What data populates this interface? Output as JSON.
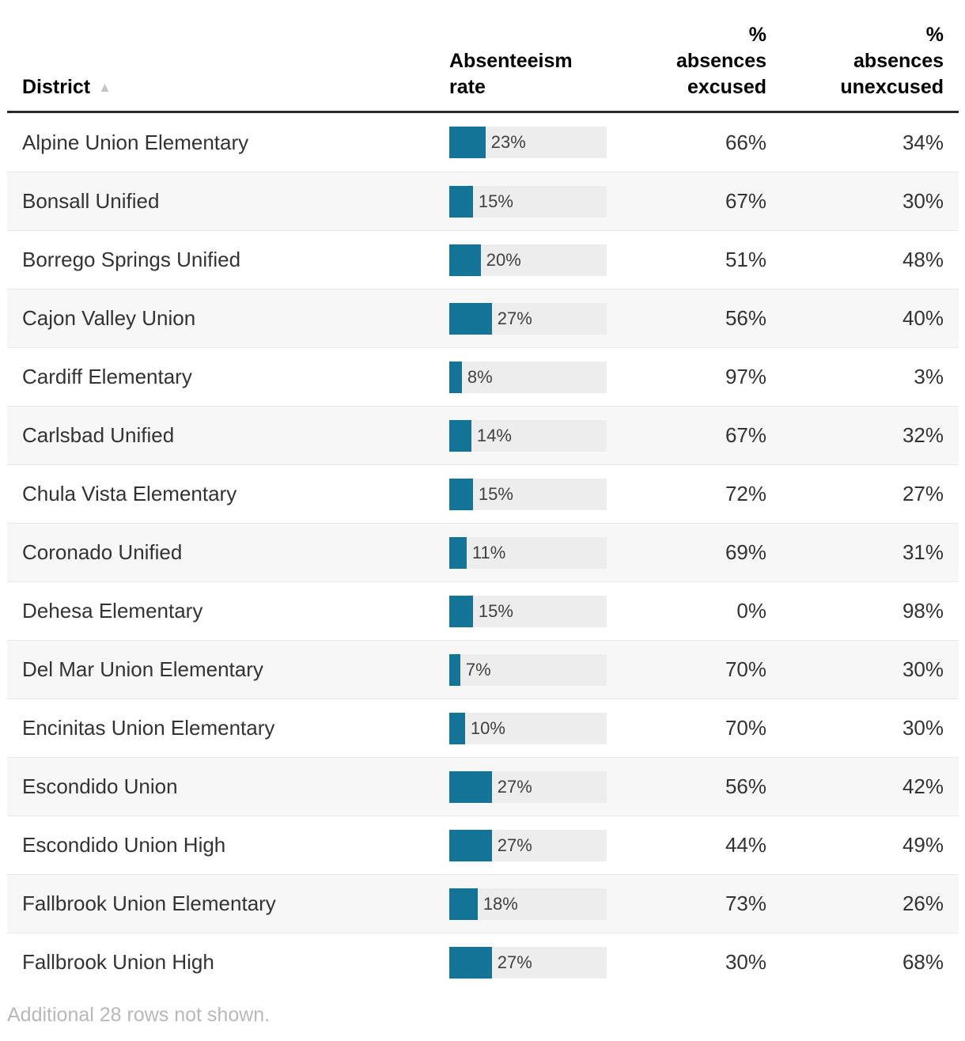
{
  "header": {
    "district_label": "District",
    "sort_icon": "▲",
    "rate_label": "Absenteeism\nrate",
    "excused_label": "%\nabsences\nexcused",
    "unexcused_label": "%\nabsences\nunexcused"
  },
  "rows": [
    {
      "district": "Alpine Union Elementary",
      "rate": 23,
      "rate_label": "23%",
      "excused": "66%",
      "unexcused": "34%"
    },
    {
      "district": "Bonsall Unified",
      "rate": 15,
      "rate_label": "15%",
      "excused": "67%",
      "unexcused": "30%"
    },
    {
      "district": "Borrego Springs Unified",
      "rate": 20,
      "rate_label": "20%",
      "excused": "51%",
      "unexcused": "48%"
    },
    {
      "district": "Cajon Valley Union",
      "rate": 27,
      "rate_label": "27%",
      "excused": "56%",
      "unexcused": "40%"
    },
    {
      "district": "Cardiff Elementary",
      "rate": 8,
      "rate_label": "8%",
      "excused": "97%",
      "unexcused": "3%"
    },
    {
      "district": "Carlsbad Unified",
      "rate": 14,
      "rate_label": "14%",
      "excused": "67%",
      "unexcused": "32%"
    },
    {
      "district": "Chula Vista Elementary",
      "rate": 15,
      "rate_label": "15%",
      "excused": "72%",
      "unexcused": "27%"
    },
    {
      "district": "Coronado Unified",
      "rate": 11,
      "rate_label": "11%",
      "excused": "69%",
      "unexcused": "31%"
    },
    {
      "district": "Dehesa Elementary",
      "rate": 15,
      "rate_label": "15%",
      "excused": "0%",
      "unexcused": "98%"
    },
    {
      "district": "Del Mar Union Elementary",
      "rate": 7,
      "rate_label": "7%",
      "excused": "70%",
      "unexcused": "30%"
    },
    {
      "district": "Encinitas Union Elementary",
      "rate": 10,
      "rate_label": "10%",
      "excused": "70%",
      "unexcused": "30%"
    },
    {
      "district": "Escondido Union",
      "rate": 27,
      "rate_label": "27%",
      "excused": "56%",
      "unexcused": "42%"
    },
    {
      "district": "Escondido Union High",
      "rate": 27,
      "rate_label": "27%",
      "excused": "44%",
      "unexcused": "49%"
    },
    {
      "district": "Fallbrook Union Elementary",
      "rate": 18,
      "rate_label": "18%",
      "excused": "73%",
      "unexcused": "26%"
    },
    {
      "district": "Fallbrook Union High",
      "rate": 27,
      "rate_label": "27%",
      "excused": "30%",
      "unexcused": "68%"
    }
  ],
  "footer": {
    "note": "Additional 28 rows not shown."
  },
  "colors": {
    "bar": "#137497",
    "bar_track": "#ededed",
    "row_stripe": "#f7f7f7",
    "header_rule": "#2b2b2b",
    "footnote": "#b8b8b8"
  },
  "chart_data": {
    "type": "table",
    "title": "",
    "columns": [
      "District",
      "Absenteeism rate",
      "% absences excused",
      "% absences unexcused"
    ],
    "sort": {
      "column": "District",
      "direction": "ascending"
    },
    "bar_column": "Absenteeism rate",
    "bar_axis_max": 100,
    "categories": [
      "Alpine Union Elementary",
      "Bonsall Unified",
      "Borrego Springs Unified",
      "Cajon Valley Union",
      "Cardiff Elementary",
      "Carlsbad Unified",
      "Chula Vista Elementary",
      "Coronado Unified",
      "Dehesa Elementary",
      "Del Mar Union Elementary",
      "Encinitas Union Elementary",
      "Escondido Union",
      "Escondido Union High",
      "Fallbrook Union Elementary",
      "Fallbrook Union High"
    ],
    "series": [
      {
        "name": "Absenteeism rate (%)",
        "values": [
          23,
          15,
          20,
          27,
          8,
          14,
          15,
          11,
          15,
          7,
          10,
          27,
          27,
          18,
          27
        ]
      },
      {
        "name": "% absences excused",
        "values": [
          66,
          67,
          51,
          56,
          97,
          67,
          72,
          69,
          0,
          70,
          70,
          56,
          44,
          73,
          30
        ]
      },
      {
        "name": "% absences unexcused",
        "values": [
          34,
          30,
          48,
          40,
          3,
          32,
          27,
          31,
          98,
          30,
          30,
          42,
          49,
          26,
          68
        ]
      }
    ],
    "note": "Additional 28 rows not shown."
  }
}
